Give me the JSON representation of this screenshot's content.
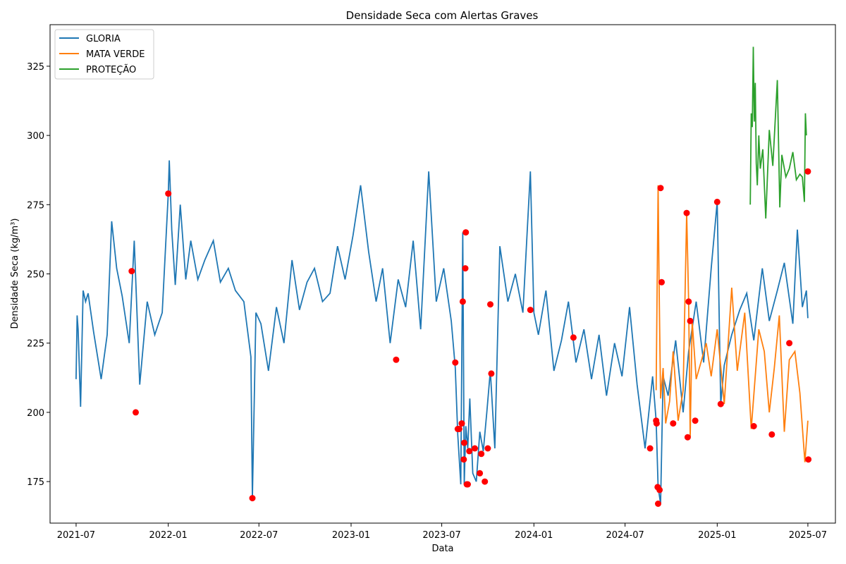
{
  "chart_data": {
    "type": "line",
    "title": "Densidade Seca com Alertas Graves",
    "xlabel": "Data",
    "ylabel": "Densidade Seca (kg/m³)",
    "xlim": [
      "2021-05-10",
      "2025-08-25"
    ],
    "ylim": [
      160,
      340
    ],
    "x_ticks": [
      "2021-07",
      "2022-01",
      "2022-07",
      "2023-01",
      "2023-07",
      "2024-01",
      "2024-07",
      "2025-01",
      "2025-07"
    ],
    "x_tick_dates": [
      "2021-07-01",
      "2022-01-01",
      "2022-07-01",
      "2023-01-01",
      "2023-07-01",
      "2024-01-01",
      "2024-07-01",
      "2025-01-01",
      "2025-07-01"
    ],
    "y_ticks": [
      175,
      200,
      225,
      250,
      275,
      300,
      325
    ],
    "grid": false,
    "legend_position": "top-left",
    "series": [
      {
        "name": "GLORIA",
        "color": "#1f77b4",
        "x": [
          "2021-07-01",
          "2021-07-03",
          "2021-07-05",
          "2021-07-10",
          "2021-07-15",
          "2021-07-20",
          "2021-07-25",
          "2021-08-05",
          "2021-08-20",
          "2021-09-01",
          "2021-09-10",
          "2021-09-20",
          "2021-10-01",
          "2021-10-15",
          "2021-10-25",
          "2021-11-05",
          "2021-11-20",
          "2021-12-05",
          "2021-12-20",
          "2022-01-01",
          "2022-01-03",
          "2022-01-08",
          "2022-01-15",
          "2022-01-25",
          "2022-02-05",
          "2022-02-15",
          "2022-03-01",
          "2022-03-15",
          "2022-04-01",
          "2022-04-15",
          "2022-05-01",
          "2022-05-15",
          "2022-06-01",
          "2022-06-15",
          "2022-06-18",
          "2022-06-25",
          "2022-07-05",
          "2022-07-20",
          "2022-08-05",
          "2022-08-20",
          "2022-09-05",
          "2022-09-20",
          "2022-10-05",
          "2022-10-20",
          "2022-11-05",
          "2022-11-20",
          "2022-12-05",
          "2022-12-20",
          "2023-01-05",
          "2023-01-20",
          "2023-02-05",
          "2023-02-20",
          "2023-03-05",
          "2023-03-20",
          "2023-04-05",
          "2023-04-20",
          "2023-05-05",
          "2023-05-20",
          "2023-06-05",
          "2023-06-20",
          "2023-07-05",
          "2023-07-20",
          "2023-07-28",
          "2023-08-02",
          "2023-08-08",
          "2023-08-12",
          "2023-08-15",
          "2023-08-18",
          "2023-08-22",
          "2023-08-26",
          "2023-09-01",
          "2023-09-08",
          "2023-09-15",
          "2023-09-22",
          "2023-09-29",
          "2023-10-06",
          "2023-10-15",
          "2023-10-25",
          "2023-11-10",
          "2023-11-25",
          "2023-12-10",
          "2023-12-25",
          "2024-01-01",
          "2024-01-10",
          "2024-01-25",
          "2024-02-10",
          "2024-02-25",
          "2024-03-10",
          "2024-03-25",
          "2024-04-10",
          "2024-04-25",
          "2024-05-10",
          "2024-05-25",
          "2024-06-10",
          "2024-06-25",
          "2024-07-10",
          "2024-07-25",
          "2024-08-10",
          "2024-08-25",
          "2024-09-01",
          "2024-09-05",
          "2024-09-10",
          "2024-09-15",
          "2024-09-25",
          "2024-10-10",
          "2024-10-25",
          "2024-11-05",
          "2024-11-20",
          "2024-12-05",
          "2024-12-20",
          "2025-01-01",
          "2025-01-08",
          "2025-01-15",
          "2025-01-30",
          "2025-02-15",
          "2025-03-01",
          "2025-03-15",
          "2025-04-01",
          "2025-04-15",
          "2025-05-01",
          "2025-05-15",
          "2025-06-01",
          "2025-06-10",
          "2025-06-20",
          "2025-06-28",
          "2025-07-01"
        ],
        "values": [
          212,
          235,
          230,
          202,
          244,
          240,
          243,
          229,
          212,
          228,
          269,
          252,
          242,
          225,
          262,
          210,
          240,
          228,
          236,
          279,
          291,
          266,
          246,
          275,
          248,
          262,
          248,
          255,
          262,
          247,
          252,
          244,
          240,
          220,
          169,
          236,
          232,
          215,
          238,
          225,
          255,
          237,
          247,
          252,
          240,
          243,
          260,
          248,
          264,
          282,
          258,
          240,
          252,
          225,
          248,
          238,
          262,
          230,
          287,
          240,
          252,
          233,
          216,
          192,
          174,
          265,
          174,
          195,
          187,
          205,
          178,
          175,
          193,
          186,
          200,
          215,
          187,
          260,
          240,
          250,
          236,
          287,
          236,
          228,
          244,
          215,
          226,
          240,
          218,
          230,
          212,
          228,
          206,
          225,
          213,
          238,
          210,
          187,
          213,
          197,
          173,
          167,
          213,
          206,
          226,
          200,
          222,
          240,
          218,
          252,
          276,
          203,
          217,
          228,
          237,
          243,
          226,
          252,
          233,
          244,
          254,
          232,
          266,
          238,
          244,
          234
        ]
      },
      {
        "name": "MATA VERDE",
        "color": "#ff7f0e",
        "x": [
          "2024-09-01",
          "2024-09-05",
          "2024-09-07",
          "2024-09-10",
          "2024-09-15",
          "2024-09-20",
          "2024-09-28",
          "2024-10-05",
          "2024-10-15",
          "2024-10-25",
          "2024-11-01",
          "2024-11-05",
          "2024-11-08",
          "2024-11-12",
          "2024-11-20",
          "2024-12-01",
          "2024-12-10",
          "2024-12-20",
          "2025-01-01",
          "2025-01-15",
          "2025-01-30",
          "2025-02-10",
          "2025-02-25",
          "2025-03-10",
          "2025-03-25",
          "2025-04-05",
          "2025-04-15",
          "2025-04-25",
          "2025-05-05",
          "2025-05-15",
          "2025-05-25",
          "2025-06-05",
          "2025-06-15",
          "2025-06-25",
          "2025-07-01"
        ],
        "values": [
          208,
          282,
          246,
          205,
          216,
          196,
          204,
          222,
          197,
          208,
          272,
          240,
          191,
          233,
          212,
          219,
          225,
          213,
          230,
          203,
          245,
          215,
          236,
          194,
          230,
          222,
          200,
          216,
          235,
          193,
          219,
          222,
          207,
          182,
          197
        ]
      },
      {
        "name": "PROTEÇÃO",
        "color": "#2ca02c",
        "x": [
          "2025-03-08",
          "2025-03-10",
          "2025-03-12",
          "2025-03-14",
          "2025-03-16",
          "2025-03-18",
          "2025-03-20",
          "2025-03-22",
          "2025-03-25",
          "2025-03-28",
          "2025-04-02",
          "2025-04-08",
          "2025-04-15",
          "2025-04-22",
          "2025-05-01",
          "2025-05-06",
          "2025-05-10",
          "2025-05-18",
          "2025-05-25",
          "2025-06-01",
          "2025-06-08",
          "2025-06-15",
          "2025-06-20",
          "2025-06-24",
          "2025-06-26",
          "2025-06-28"
        ],
        "values": [
          275,
          308,
          303,
          332,
          305,
          319,
          290,
          282,
          300,
          288,
          295,
          270,
          302,
          289,
          320,
          274,
          293,
          285,
          288,
          294,
          284,
          286,
          285,
          276,
          308,
          300
        ]
      }
    ],
    "alerts": {
      "name": "Alertas Graves",
      "color": "#ff0000",
      "x": [
        "2021-10-20",
        "2021-10-28",
        "2022-01-01",
        "2022-06-18",
        "2023-04-01",
        "2023-07-28",
        "2023-08-02",
        "2023-08-05",
        "2023-08-10",
        "2023-08-12",
        "2023-08-14",
        "2023-08-15",
        "2023-08-17",
        "2023-08-18",
        "2023-08-20",
        "2023-08-22",
        "2023-08-25",
        "2023-09-05",
        "2023-09-15",
        "2023-09-18",
        "2023-09-25",
        "2023-10-01",
        "2023-10-06",
        "2023-10-08",
        "2023-12-25",
        "2024-03-20",
        "2024-08-20",
        "2024-09-01",
        "2024-09-02",
        "2024-09-04",
        "2024-09-05",
        "2024-09-08",
        "2024-09-10",
        "2024-09-12",
        "2024-10-05",
        "2024-11-01",
        "2024-11-03",
        "2024-11-05",
        "2024-11-08",
        "2024-11-18",
        "2025-01-01",
        "2025-01-08",
        "2025-03-15",
        "2025-04-20",
        "2025-05-25",
        "2025-07-01",
        "2025-07-02"
      ],
      "values": [
        251,
        200,
        279,
        169,
        219,
        218,
        194,
        194,
        196,
        240,
        183,
        189,
        252,
        265,
        174,
        174,
        186,
        187,
        178,
        185,
        175,
        187,
        239,
        214,
        237,
        227,
        187,
        197,
        196,
        173,
        167,
        172,
        281,
        247,
        196,
        272,
        191,
        240,
        233,
        197,
        276,
        203,
        195,
        192,
        225,
        287,
        183
      ]
    }
  }
}
